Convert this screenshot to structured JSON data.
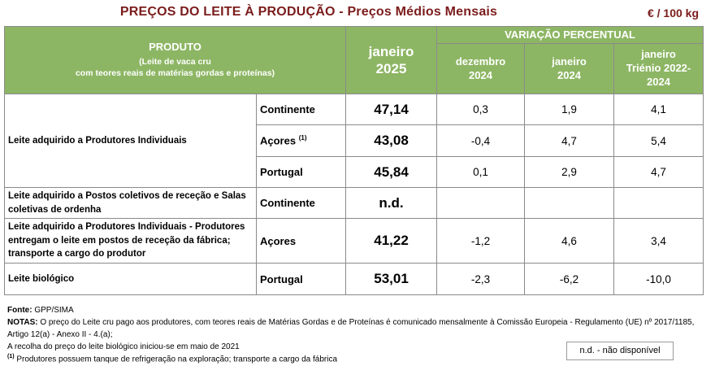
{
  "title": "PREÇOS DO LEITE À PRODUÇÃO - Preços Médios Mensais",
  "unit": "€ / 100 kg",
  "headers": {
    "product": "PRODUTO",
    "product_sub1": "(Leite de vaca cru",
    "product_sub2": "com teores reais de matérias gordas e proteínas)",
    "current_line1": "janeiro",
    "current_line2": "2025",
    "variation": "VARIAÇÃO PERCENTUAL",
    "cols": [
      {
        "line1": "dezembro",
        "line2": "2024"
      },
      {
        "line1": "janeiro",
        "line2": "2024"
      },
      {
        "line1": "janeiro",
        "line2": "Triénio 2022-",
        "line3": "2024"
      }
    ]
  },
  "groups": [
    {
      "label": "Leite adquirido a Produtores Individuais"
    },
    {
      "label": "Leite adquirido a Postos coletivos de receção e Salas coletivas de ordenha"
    },
    {
      "label": "Leite adquirido a Produtores Individuais - Produtores entregam o leite em postos de receção da fábrica; transporte a cargo do produtor"
    },
    {
      "label": "Leite biológico"
    }
  ],
  "rows": [
    {
      "region": "Continente",
      "price": "47,14",
      "v1": "0,3",
      "v2": "1,9",
      "v3": "4,1"
    },
    {
      "region": "Açores",
      "note": "(1)",
      "price": "43,08",
      "v1": "-0,4",
      "v2": "4,7",
      "v3": "5,4"
    },
    {
      "region": "Portugal",
      "price": "45,84",
      "v1": "0,1",
      "v2": "2,9",
      "v3": "4,7"
    },
    {
      "region": "Continente",
      "price": "n.d.",
      "v1": "",
      "v2": "",
      "v3": ""
    },
    {
      "region": "Açores",
      "price": "41,22",
      "v1": "-1,2",
      "v2": "4,6",
      "v3": "3,4"
    },
    {
      "region": "Portugal",
      "price": "53,01",
      "v1": "-2,3",
      "v2": "-6,2",
      "v3": "-10,0"
    }
  ],
  "notes": {
    "source_label": "Fonte:",
    "source": "GPP/SIMA",
    "notes_label": "NOTAS:",
    "note_text": "O preço do Leite cru pago aos produtores, com teores reais de Matérias Gordas e de Proteínas é comunicado mensalmente à Comissão Europeia - Regulamento (UE) nº 2017/1185, Artigo 12(a) - Anexo II - 4.(a);",
    "bio_note": "A recolha do preço do leite biológico iniciou-se em maio de 2021",
    "footnote_mark": "(1)",
    "footnote": "Produtores possuem tanque de refrigeração na exploração; transporte a cargo da fábrica"
  },
  "legend": "n.d. - não disponível",
  "colors": {
    "header_bg": "#8db664",
    "title": "#7b1c1c",
    "border": "#8a8a8a"
  }
}
